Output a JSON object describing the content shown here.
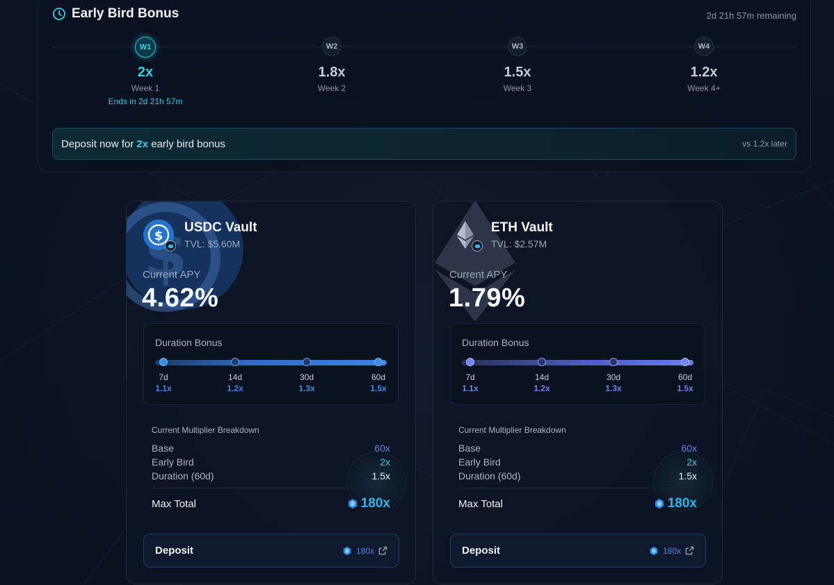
{
  "early_bird": {
    "title": "Early Bird Bonus",
    "remaining": "2d 21h 57m remaining",
    "weeks": [
      {
        "badge": "W1",
        "multiplier": "2x",
        "label": "Week 1",
        "ends": "Ends in 2d 21h 57m",
        "active": true
      },
      {
        "badge": "W2",
        "multiplier": "1.8x",
        "label": "Week 2"
      },
      {
        "badge": "W3",
        "multiplier": "1.5x",
        "label": "Week 3"
      },
      {
        "badge": "W4",
        "multiplier": "1.2x",
        "label": "Week 4+"
      }
    ],
    "banner": {
      "prefix": "Deposit now for ",
      "highlight": "2x",
      "suffix": " early bird bonus",
      "later": "vs 1.2x later"
    }
  },
  "vaults": [
    {
      "name": "USDC Vault",
      "tvl": "TVL: $5.60M",
      "apy_label": "Current APY",
      "apy": "4.62%",
      "duration_title": "Duration Bonus",
      "stops": [
        {
          "label": "7d",
          "mult": "1.1x"
        },
        {
          "label": "14d",
          "mult": "1.2x"
        },
        {
          "label": "30d",
          "mult": "1.3x"
        },
        {
          "label": "60d",
          "mult": "1.5x"
        }
      ],
      "breakdown_title": "Current Multiplier Breakdown",
      "rows": [
        {
          "label": "Base",
          "value": "60x"
        },
        {
          "label": "Early Bird",
          "value": "2x"
        },
        {
          "label": "Duration (60d)",
          "value": "1.5x"
        }
      ],
      "total_label": "Max Total",
      "total_value": "180x",
      "deposit_label": "Deposit",
      "deposit_badge": "180x",
      "icon": "usdc-icon",
      "accent": "#2775ca"
    },
    {
      "name": "ETH Vault",
      "tvl": "TVL: $2.57M",
      "apy_label": "Current APY",
      "apy": "1.79%",
      "duration_title": "Duration Bonus",
      "stops": [
        {
          "label": "7d",
          "mult": "1.1x"
        },
        {
          "label": "14d",
          "mult": "1.2x"
        },
        {
          "label": "30d",
          "mult": "1.3x"
        },
        {
          "label": "60d",
          "mult": "1.5x"
        }
      ],
      "breakdown_title": "Current Multiplier Breakdown",
      "rows": [
        {
          "label": "Base",
          "value": "60x"
        },
        {
          "label": "Early Bird",
          "value": "2x"
        },
        {
          "label": "Duration (60d)",
          "value": "1.5x"
        }
      ],
      "total_label": "Max Total",
      "total_value": "180x",
      "deposit_label": "Deposit",
      "deposit_badge": "180x",
      "icon": "eth-icon",
      "accent": "#6b7ee6"
    }
  ],
  "colors": {
    "cyan": "#33cfe8",
    "blue": "#2775ca",
    "background": "#0b1220"
  }
}
